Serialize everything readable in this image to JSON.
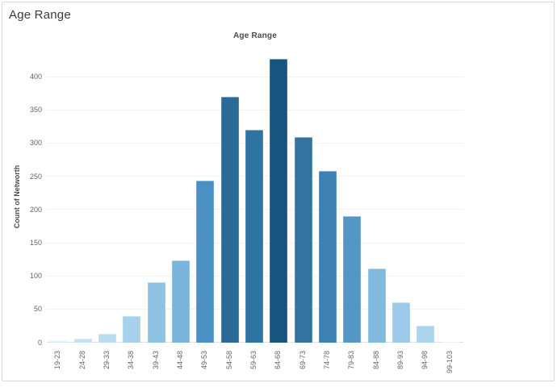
{
  "page": {
    "title": "Age Range"
  },
  "colors": {
    "card_border": "#d9d9d9",
    "gridline": "#f2f2f2",
    "axis_baseline": "#e2e2e2",
    "tick_text": "#666666",
    "title_text": "#4a4a4a"
  },
  "chart_data": {
    "type": "bar",
    "title": "Age Range",
    "xlabel": "",
    "ylabel": "Count of Networth",
    "categories": [
      "19-23",
      "24-28",
      "29-33",
      "34-38",
      "39-43",
      "44-48",
      "49-53",
      "54-58",
      "59-63",
      "64-68",
      "69-73",
      "74-78",
      "79-83",
      "84-88",
      "89-93",
      "94-98",
      "99-103"
    ],
    "values": [
      2,
      6,
      13,
      40,
      91,
      124,
      244,
      370,
      321,
      427,
      310,
      259,
      191,
      112,
      61,
      25,
      1
    ],
    "bar_colors": [
      "#d2e9f7",
      "#c4e1f3",
      "#badcf0",
      "#a7d1eb",
      "#8ec2e3",
      "#7ab5dc",
      "#4a90c2",
      "#2a6a99",
      "#2f73a2",
      "#17547e",
      "#32749f",
      "#3d81b2",
      "#5496c6",
      "#82bade",
      "#9bc9e7",
      "#abd4ed",
      "#d6ebf8"
    ],
    "yticks": [
      0,
      50,
      100,
      150,
      200,
      250,
      300,
      350,
      400
    ],
    "ylim": [
      0,
      442
    ],
    "grid": "horizontal",
    "legend": "none"
  }
}
